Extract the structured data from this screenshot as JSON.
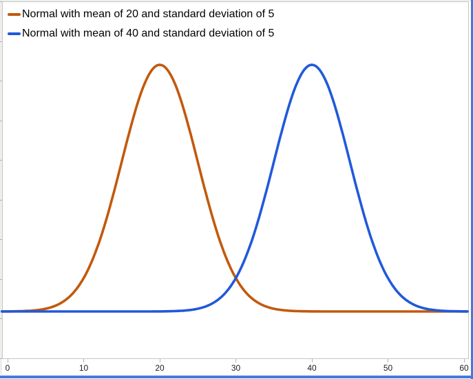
{
  "window": {
    "outer_background": "#EEEFEB",
    "frame_border_color": "#C6C7C2",
    "tick_color": "#AFB0AB",
    "selection_edge_color": "#447AD8"
  },
  "chart_data": {
    "type": "line",
    "title": "",
    "xlabel": "",
    "ylabel": "",
    "legend_position": "top-left",
    "x_ticks": [
      0,
      10,
      20,
      30,
      40,
      50,
      60
    ],
    "x_range": [
      -0.75,
      60.6
    ],
    "y_range": [
      -0.0152,
      0.1003
    ],
    "y_axis_note": "y-axis tick labels cropped off left edge of screenshot; 10 unlabeled tick marks visible",
    "grid": false,
    "series": [
      {
        "name": "Normal with mean of 20 and standard deviation of 5",
        "distribution": "normal",
        "mean": 20,
        "sd": 5,
        "peak_density": 0.0798,
        "color": "#C2590C"
      },
      {
        "name": "Normal with mean of 40 and standard deviation of 5",
        "distribution": "normal",
        "mean": 40,
        "sd": 5,
        "peak_density": 0.0798,
        "color": "#2059DB"
      }
    ],
    "sampled_points": {
      "x": [
        0,
        5,
        10,
        15,
        20,
        25,
        30,
        35,
        40,
        45,
        50,
        55,
        60
      ],
      "series": [
        {
          "name": "Normal with mean of 20 and standard deviation of 5",
          "density": [
            3e-05,
            0.00089,
            0.0108,
            0.0484,
            0.0798,
            0.0484,
            0.0108,
            0.00089,
            3e-05,
            0,
            0,
            0,
            0
          ]
        },
        {
          "name": "Normal with mean of 40 and standard deviation of 5",
          "density": [
            0,
            0,
            0,
            0,
            3e-05,
            0.00089,
            0.0108,
            0.0484,
            0.0798,
            0.0484,
            0.0108,
            0.00089,
            3e-05
          ]
        }
      ]
    }
  }
}
